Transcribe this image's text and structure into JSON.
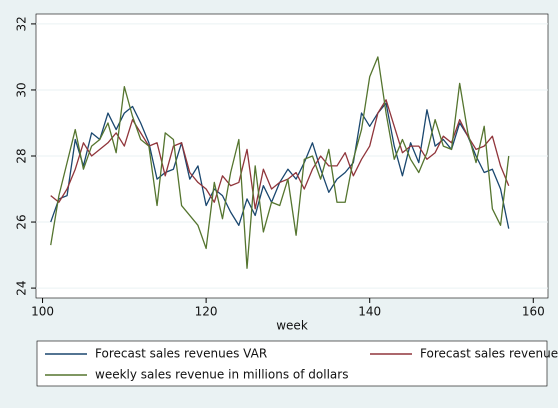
{
  "chart_data": {
    "type": "line",
    "xlabel": "week",
    "x": [
      101,
      102,
      103,
      104,
      105,
      106,
      107,
      108,
      109,
      110,
      111,
      112,
      113,
      114,
      115,
      116,
      117,
      118,
      119,
      120,
      121,
      122,
      123,
      124,
      125,
      126,
      127,
      128,
      129,
      130,
      131,
      132,
      133,
      134,
      135,
      136,
      137,
      138,
      139,
      140,
      141,
      142,
      143,
      144,
      145,
      146,
      147,
      148,
      149,
      150,
      151,
      152,
      153,
      154,
      155,
      156,
      157
    ],
    "series": [
      {
        "name": "Forecast sales revenues VAR",
        "color": "#1a476f",
        "values": [
          26.0,
          26.7,
          26.8,
          28.5,
          27.7,
          28.7,
          28.5,
          29.3,
          28.8,
          29.3,
          29.5,
          29.0,
          28.4,
          27.3,
          27.5,
          27.6,
          28.4,
          27.3,
          27.7,
          26.5,
          27.0,
          26.8,
          26.3,
          25.9,
          26.7,
          26.2,
          27.1,
          26.6,
          27.2,
          27.6,
          27.3,
          27.8,
          28.4,
          27.6,
          26.9,
          27.3,
          27.5,
          27.8,
          29.3,
          28.9,
          29.3,
          29.6,
          28.3,
          27.4,
          28.4,
          27.8,
          29.4,
          28.3,
          28.5,
          28.2,
          29.0,
          28.6,
          28.0,
          27.5,
          27.6,
          27.0,
          25.8
        ]
      },
      {
        "name": "Forecast sales revenues AR",
        "color": "#90353b",
        "values": [
          26.8,
          26.6,
          27.0,
          27.6,
          28.4,
          28.0,
          28.2,
          28.4,
          28.7,
          28.3,
          29.1,
          28.7,
          28.3,
          28.4,
          27.4,
          28.3,
          28.4,
          27.5,
          27.2,
          27.0,
          26.6,
          27.4,
          27.1,
          27.2,
          28.2,
          26.4,
          27.6,
          27.0,
          27.2,
          27.3,
          27.5,
          27.0,
          27.6,
          28.0,
          27.7,
          27.7,
          28.1,
          27.4,
          27.9,
          28.3,
          29.3,
          29.7,
          28.9,
          28.1,
          28.3,
          28.3,
          27.9,
          28.1,
          28.6,
          28.4,
          29.1,
          28.6,
          28.2,
          28.3,
          28.6,
          27.7,
          27.1
        ]
      },
      {
        "name": "weekly sales revenue in millions of dollars",
        "color": "#55752f",
        "values": [
          25.3,
          26.8,
          27.8,
          28.8,
          27.6,
          28.3,
          28.5,
          29.0,
          28.1,
          30.1,
          29.2,
          28.5,
          28.3,
          26.5,
          28.7,
          28.5,
          26.5,
          26.2,
          25.9,
          25.2,
          27.2,
          26.1,
          27.5,
          28.5,
          24.6,
          27.7,
          25.7,
          26.6,
          26.5,
          27.3,
          25.6,
          27.9,
          28.0,
          27.3,
          28.2,
          26.6,
          26.6,
          27.9,
          28.8,
          30.4,
          31.0,
          29.3,
          27.9,
          28.5,
          27.9,
          27.5,
          28.1,
          29.1,
          28.3,
          28.2,
          30.2,
          28.7,
          27.8,
          28.9,
          26.4,
          25.9,
          28.0
        ]
      }
    ],
    "xlim": [
      99.2,
      161.8
    ],
    "xticks": [
      100,
      120,
      140,
      160
    ],
    "ylim": [
      23.7,
      32.3
    ],
    "yticks": [
      24,
      26,
      28,
      30,
      32
    ],
    "grid": true
  }
}
